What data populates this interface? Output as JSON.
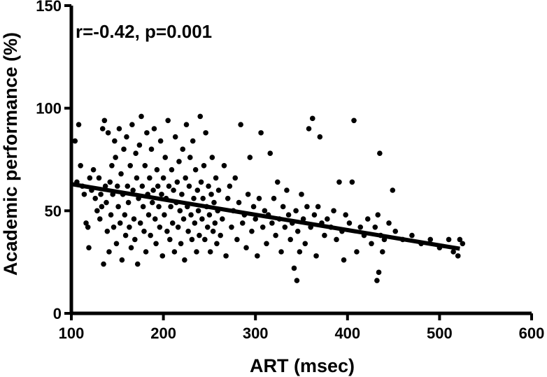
{
  "chart_data": {
    "type": "scatter",
    "title": "",
    "xlabel": "ART (msec)",
    "ylabel": "Academic  performance (%)",
    "xlim": [
      100,
      600
    ],
    "ylim": [
      0,
      150
    ],
    "xticks": [
      "100",
      "200",
      "300",
      "400",
      "500",
      "600"
    ],
    "yticks": [
      "0",
      "50",
      "100",
      "150"
    ],
    "annotation": "r=-0.42, p=0.001",
    "grid": false,
    "marker_color": "#000000",
    "regression_line": {
      "x": [
        100,
        522
      ],
      "y": [
        63,
        31.5
      ]
    },
    "series": [
      {
        "points": [
          [
            104,
            84
          ],
          [
            106,
            64
          ],
          [
            108,
            92
          ],
          [
            110,
            72
          ],
          [
            112,
            62
          ],
          [
            114,
            58
          ],
          [
            116,
            44
          ],
          [
            118,
            42
          ],
          [
            119,
            32
          ],
          [
            120,
            66
          ],
          [
            122,
            60
          ],
          [
            124,
            70
          ],
          [
            126,
            56
          ],
          [
            128,
            50
          ],
          [
            130,
            66
          ],
          [
            131,
            46
          ],
          [
            132,
            58
          ],
          [
            133,
            52
          ],
          [
            134,
            90
          ],
          [
            135,
            24
          ],
          [
            136,
            94
          ],
          [
            137,
            62
          ],
          [
            138,
            54
          ],
          [
            139,
            40
          ],
          [
            140,
            88
          ],
          [
            141,
            30
          ],
          [
            142,
            64
          ],
          [
            143,
            48
          ],
          [
            144,
            72
          ],
          [
            145,
            58
          ],
          [
            146,
            42
          ],
          [
            147,
            84
          ],
          [
            148,
            76
          ],
          [
            149,
            34
          ],
          [
            150,
            62
          ],
          [
            151,
            52
          ],
          [
            152,
            90
          ],
          [
            153,
            44
          ],
          [
            154,
            68
          ],
          [
            155,
            26
          ],
          [
            156,
            58
          ],
          [
            157,
            80
          ],
          [
            158,
            48
          ],
          [
            159,
            38
          ],
          [
            160,
            86
          ],
          [
            161,
            62
          ],
          [
            162,
            54
          ],
          [
            163,
            42
          ],
          [
            164,
            72
          ],
          [
            165,
            32
          ],
          [
            166,
            92
          ],
          [
            167,
            60
          ],
          [
            168,
            46
          ],
          [
            169,
            36
          ],
          [
            170,
            78
          ],
          [
            171,
            66
          ],
          [
            172,
            24
          ],
          [
            173,
            56
          ],
          [
            174,
            82
          ],
          [
            175,
            44
          ],
          [
            176,
            96
          ],
          [
            177,
            62
          ],
          [
            178,
            52
          ],
          [
            179,
            40
          ],
          [
            180,
            72
          ],
          [
            181,
            30
          ],
          [
            182,
            88
          ],
          [
            183,
            58
          ],
          [
            184,
            48
          ],
          [
            185,
            66
          ],
          [
            186,
            38
          ],
          [
            187,
            80
          ],
          [
            188,
            54
          ],
          [
            189,
            60
          ],
          [
            190,
            90
          ],
          [
            191,
            46
          ],
          [
            192,
            34
          ],
          [
            193,
            70
          ],
          [
            194,
            62
          ],
          [
            195,
            52
          ],
          [
            196,
            42
          ],
          [
            197,
            84
          ],
          [
            198,
            58
          ],
          [
            199,
            28
          ],
          [
            200,
            66
          ],
          [
            201,
            48
          ],
          [
            202,
            76
          ],
          [
            203,
            56
          ],
          [
            204,
            40
          ],
          [
            205,
            94
          ],
          [
            206,
            62
          ],
          [
            207,
            36
          ],
          [
            208,
            52
          ],
          [
            209,
            70
          ],
          [
            210,
            44
          ],
          [
            211,
            60
          ],
          [
            212,
            30
          ],
          [
            213,
            86
          ],
          [
            214,
            54
          ],
          [
            215,
            64
          ],
          [
            216,
            42
          ],
          [
            217,
            74
          ],
          [
            218,
            50
          ],
          [
            219,
            34
          ],
          [
            220,
            58
          ],
          [
            221,
            80
          ],
          [
            222,
            46
          ],
          [
            223,
            26
          ],
          [
            224,
            66
          ],
          [
            225,
            92
          ],
          [
            226,
            52
          ],
          [
            227,
            40
          ],
          [
            228,
            62
          ],
          [
            229,
            76
          ],
          [
            230,
            48
          ],
          [
            231,
            36
          ],
          [
            232,
            84
          ],
          [
            233,
            56
          ],
          [
            234,
            44
          ],
          [
            235,
            70
          ],
          [
            236,
            30
          ],
          [
            237,
            60
          ],
          [
            238,
            50
          ],
          [
            239,
            38
          ],
          [
            240,
            96
          ],
          [
            241,
            64
          ],
          [
            242,
            46
          ],
          [
            243,
            56
          ],
          [
            244,
            72
          ],
          [
            245,
            36
          ],
          [
            246,
            88
          ],
          [
            247,
            52
          ],
          [
            248,
            42
          ],
          [
            249,
            62
          ],
          [
            250,
            48
          ],
          [
            251,
            30
          ],
          [
            252,
            58
          ],
          [
            253,
            76
          ],
          [
            254,
            40
          ],
          [
            255,
            54
          ],
          [
            256,
            44
          ],
          [
            257,
            66
          ],
          [
            258,
            34
          ],
          [
            259,
            50
          ],
          [
            260,
            60
          ],
          [
            262,
            38
          ],
          [
            264,
            46
          ],
          [
            266,
            72
          ],
          [
            268,
            28
          ],
          [
            270,
            56
          ],
          [
            272,
            62
          ],
          [
            274,
            42
          ],
          [
            276,
            50
          ],
          [
            278,
            66
          ],
          [
            280,
            36
          ],
          [
            282,
            54
          ],
          [
            284,
            92
          ],
          [
            286,
            44
          ],
          [
            288,
            48
          ],
          [
            290,
            32
          ],
          [
            292,
            58
          ],
          [
            294,
            76
          ],
          [
            296,
            40
          ],
          [
            298,
            52
          ],
          [
            300,
            46
          ],
          [
            302,
            28
          ],
          [
            304,
            56
          ],
          [
            306,
            88
          ],
          [
            308,
            42
          ],
          [
            310,
            50
          ],
          [
            312,
            34
          ],
          [
            314,
            48
          ],
          [
            316,
            78
          ],
          [
            318,
            44
          ],
          [
            320,
            56
          ],
          [
            322,
            38
          ],
          [
            324,
            64
          ],
          [
            326,
            46
          ],
          [
            328,
            30
          ],
          [
            330,
            52
          ],
          [
            332,
            42
          ],
          [
            334,
            60
          ],
          [
            336,
            48
          ],
          [
            338,
            36
          ],
          [
            340,
            44
          ],
          [
            342,
            22
          ],
          [
            344,
            50
          ],
          [
            345,
            16
          ],
          [
            346,
            40
          ],
          [
            348,
            30
          ],
          [
            350,
            58
          ],
          [
            352,
            46
          ],
          [
            354,
            34
          ],
          [
            356,
            52
          ],
          [
            358,
            90
          ],
          [
            360,
            42
          ],
          [
            362,
            95
          ],
          [
            364,
            48
          ],
          [
            366,
            28
          ],
          [
            368,
            52
          ],
          [
            370,
            86
          ],
          [
            372,
            44
          ],
          [
            375,
            38
          ],
          [
            378,
            46
          ],
          [
            382,
            42
          ],
          [
            385,
            50
          ],
          [
            388,
            36
          ],
          [
            391,
            64
          ],
          [
            394,
            40
          ],
          [
            396,
            26
          ],
          [
            398,
            48
          ],
          [
            402,
            44
          ],
          [
            405,
            64
          ],
          [
            407,
            94
          ],
          [
            410,
            30
          ],
          [
            414,
            42
          ],
          [
            418,
            38
          ],
          [
            422,
            46
          ],
          [
            426,
            34
          ],
          [
            430,
            42
          ],
          [
            432,
            16
          ],
          [
            433,
            48
          ],
          [
            434,
            20
          ],
          [
            435,
            78
          ],
          [
            436,
            38
          ],
          [
            438,
            30
          ],
          [
            440,
            36
          ],
          [
            445,
            44
          ],
          [
            449,
            60
          ],
          [
            452,
            40
          ],
          [
            460,
            36
          ],
          [
            470,
            38
          ],
          [
            480,
            34
          ],
          [
            490,
            36
          ],
          [
            500,
            32
          ],
          [
            510,
            36
          ],
          [
            515,
            30
          ],
          [
            520,
            28
          ],
          [
            522,
            36
          ],
          [
            525,
            34
          ]
        ]
      }
    ]
  }
}
